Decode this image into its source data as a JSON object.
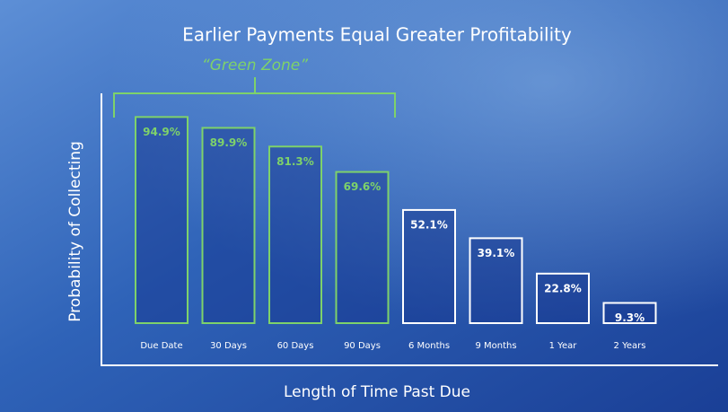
{
  "chart_data": {
    "type": "bar",
    "title": "Earlier Payments Equal Greater Profitability",
    "annotation": "“Green Zone”",
    "y_label": "Probability of Collecting",
    "x_label": "Length of Time Past Due",
    "categories": [
      "Due Date",
      "30 Days",
      "60 Days",
      "90 Days",
      "6 Months",
      "9 Months",
      "1 Year",
      "2 Years"
    ],
    "values": [
      94.9,
      89.9,
      81.3,
      69.6,
      52.1,
      39.1,
      22.8,
      9.3
    ],
    "value_labels": [
      "94.9%",
      "89.9%",
      "81.3%",
      "69.6%",
      "52.1%",
      "39.1%",
      "22.8%",
      "9.3%"
    ],
    "colors": [
      "#7ed26a",
      "#7ed26a",
      "#7ed26a",
      "#7ed26a",
      "#ffffff",
      "#ffffff",
      "#ffffff",
      "#ffffff"
    ]
  }
}
